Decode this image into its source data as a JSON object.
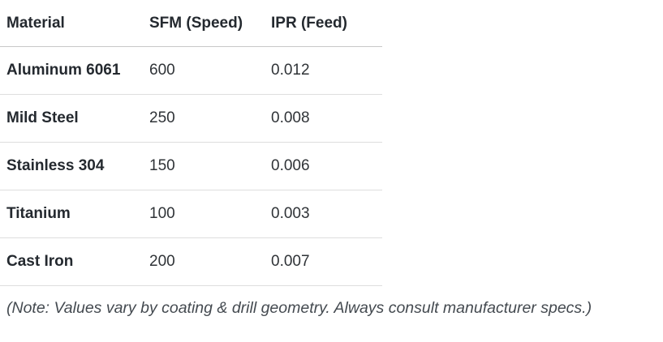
{
  "table": {
    "headers": {
      "material": "Material",
      "speed": "SFM (Speed)",
      "feed": "IPR (Feed)"
    },
    "rows": [
      {
        "material": "Aluminum 6061",
        "sfm": "600",
        "ipr": "0.012"
      },
      {
        "material": "Mild Steel",
        "sfm": "250",
        "ipr": "0.008"
      },
      {
        "material": "Stainless 304",
        "sfm": "150",
        "ipr": "0.006"
      },
      {
        "material": "Titanium",
        "sfm": "100",
        "ipr": "0.003"
      },
      {
        "material": "Cast Iron",
        "sfm": "200",
        "ipr": "0.007"
      }
    ]
  },
  "note": "(Note: Values vary by coating & drill geometry. Always consult manufacturer specs.)"
}
